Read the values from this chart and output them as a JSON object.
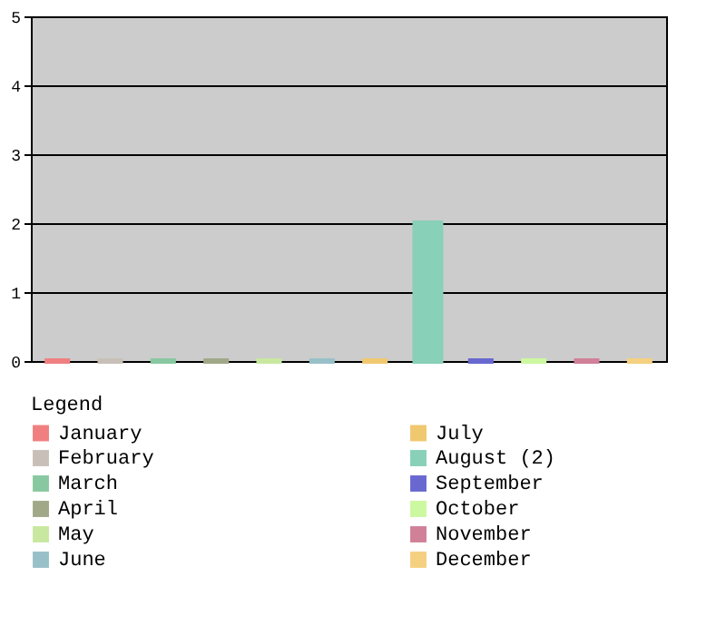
{
  "chart_data": {
    "type": "bar",
    "legend_title": "Legend",
    "categories": [
      null,
      null,
      null,
      null,
      null,
      null,
      null,
      null,
      null,
      null,
      null,
      null
    ],
    "series": [
      {
        "name": "January",
        "color": "#f08080",
        "values": [
          0,
          null,
          null,
          null,
          null,
          null,
          null,
          null,
          null,
          null,
          null,
          null
        ]
      },
      {
        "name": "February",
        "color": "#c8c0b8",
        "values": [
          null,
          0,
          null,
          null,
          null,
          null,
          null,
          null,
          null,
          null,
          null,
          null
        ]
      },
      {
        "name": "March",
        "color": "#88c8a0",
        "values": [
          null,
          null,
          0,
          null,
          null,
          null,
          null,
          null,
          null,
          null,
          null,
          null
        ]
      },
      {
        "name": "April",
        "color": "#a0a888",
        "values": [
          null,
          null,
          null,
          0,
          null,
          null,
          null,
          null,
          null,
          null,
          null,
          null
        ]
      },
      {
        "name": "May",
        "color": "#c8e8a0",
        "values": [
          null,
          null,
          null,
          null,
          0,
          null,
          null,
          null,
          null,
          null,
          null,
          null
        ]
      },
      {
        "name": "June",
        "color": "#98c0c8",
        "values": [
          null,
          null,
          null,
          null,
          null,
          0,
          null,
          null,
          null,
          null,
          null,
          null
        ]
      },
      {
        "name": "July",
        "color": "#f0c870",
        "values": [
          null,
          null,
          null,
          null,
          null,
          null,
          0,
          null,
          null,
          null,
          null,
          null
        ]
      },
      {
        "name": "August (2)",
        "color": "#88d0b8",
        "values": [
          null,
          null,
          null,
          null,
          null,
          null,
          null,
          2,
          null,
          null,
          null,
          null
        ]
      },
      {
        "name": "September",
        "color": "#6868d0",
        "values": [
          null,
          null,
          null,
          null,
          null,
          null,
          null,
          null,
          0,
          null,
          null,
          null
        ]
      },
      {
        "name": "October",
        "color": "#ccf8a0",
        "values": [
          null,
          null,
          null,
          null,
          null,
          null,
          null,
          null,
          null,
          0,
          null,
          null
        ]
      },
      {
        "name": "November",
        "color": "#d08098",
        "values": [
          null,
          null,
          null,
          null,
          null,
          null,
          null,
          null,
          null,
          null,
          0,
          null
        ]
      },
      {
        "name": "December",
        "color": "#f4d080",
        "values": [
          null,
          null,
          null,
          null,
          null,
          null,
          null,
          null,
          null,
          null,
          null,
          0
        ]
      }
    ],
    "ylim": [
      0,
      5
    ],
    "yticks": [
      0,
      1,
      2,
      3,
      4,
      5
    ],
    "grid": "y",
    "legend": "bottom",
    "tick_labels": "y"
  }
}
